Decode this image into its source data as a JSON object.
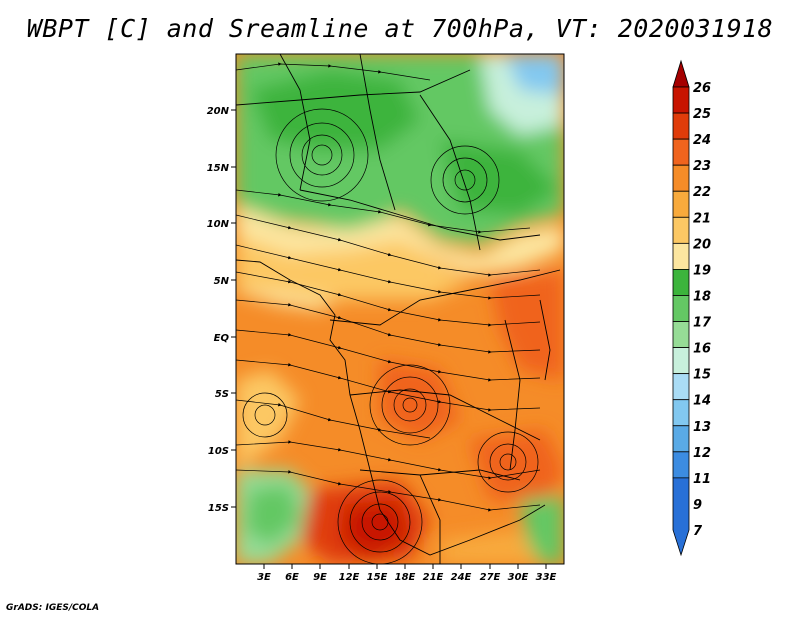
{
  "title": "WBPT [C] and Sreamline at 700hPa, VT: 2020031918",
  "credit": "GrADS: IGES/COLA",
  "map": {
    "lat_labels": [
      "20N",
      "15N",
      "10N",
      "5N",
      "EQ",
      "5S",
      "10S",
      "15S"
    ],
    "lon_labels": [
      "3E",
      "6E",
      "9E",
      "12E",
      "15E",
      "18E",
      "21E",
      "24E",
      "27E",
      "30E",
      "33E"
    ]
  },
  "colorbar": {
    "labels": [
      "26",
      "25",
      "24",
      "23",
      "22",
      "21",
      "20",
      "19",
      "18",
      "17",
      "16",
      "15",
      "14",
      "13",
      "12",
      "11",
      "9",
      "7"
    ],
    "colors": [
      "#a50000",
      "#c81400",
      "#e03c0a",
      "#f0641e",
      "#f58c28",
      "#f8aa3c",
      "#fcc864",
      "#fce6a0",
      "#3cb43c",
      "#64c864",
      "#96dc96",
      "#c8f0dc",
      "#aadcf5",
      "#82c8f0",
      "#5aaae6",
      "#3c8ce1",
      "#2870d7"
    ]
  }
}
